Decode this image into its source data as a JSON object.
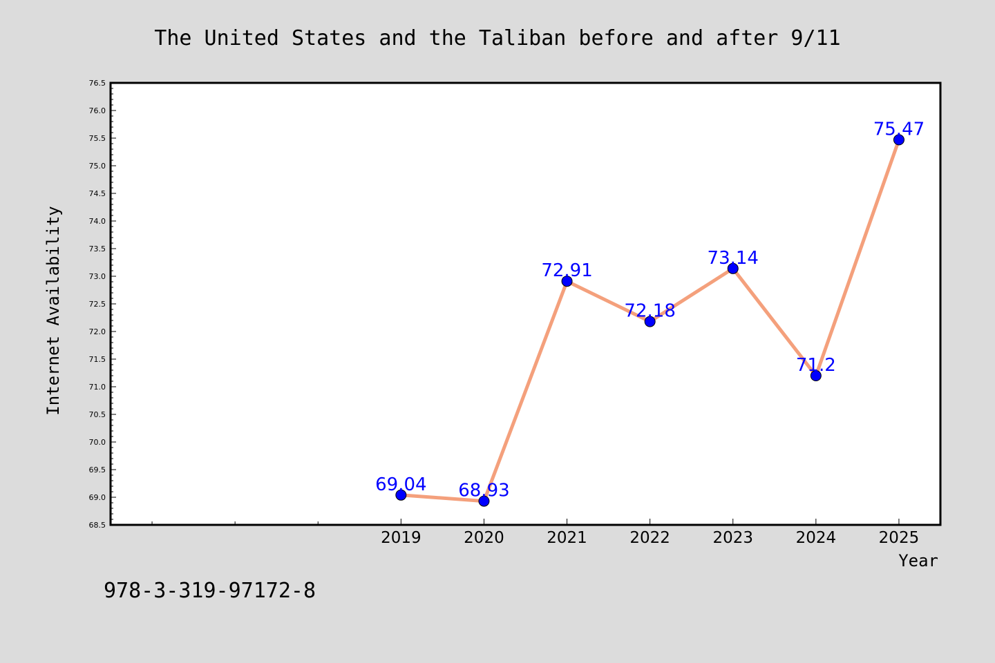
{
  "chart_data": {
    "type": "line",
    "title": "The United States and the Taliban before and after 9/11",
    "xlabel": "Year",
    "ylabel": "Internet Availability",
    "x": [
      2019,
      2020,
      2021,
      2022,
      2023,
      2024,
      2025
    ],
    "x_tick_labels": [
      "2019",
      "2020",
      "2021",
      "2022",
      "2023",
      "2024",
      "2025"
    ],
    "x_range": [
      2015.5,
      2025.5
    ],
    "y_ticks": [
      "68.5",
      "69.0",
      "69.5",
      "70.0",
      "70.5",
      "71.0",
      "71.5",
      "72.0",
      "72.5",
      "73.0",
      "73.5",
      "74.0",
      "74.5",
      "75.0",
      "75.5",
      "76.0",
      "76.5"
    ],
    "ylim": [
      68.5,
      76.5
    ],
    "series": [
      {
        "values": [
          69.04,
          68.93,
          72.91,
          72.18,
          73.14,
          71.2,
          75.47
        ],
        "data_labels": [
          "69.04",
          "68.93",
          "72.91",
          "72.18",
          "73.14",
          "71.2",
          "75.47"
        ],
        "line_color": "#f4a07c",
        "marker_color": "#0000ff",
        "label_color": "#0000ff"
      }
    ],
    "grid": false,
    "legend": "none"
  },
  "footer": {
    "isbn": "978-3-319-97172-8"
  },
  "colors": {
    "background": "#dcdcdc",
    "plot_background": "#ffffff"
  }
}
